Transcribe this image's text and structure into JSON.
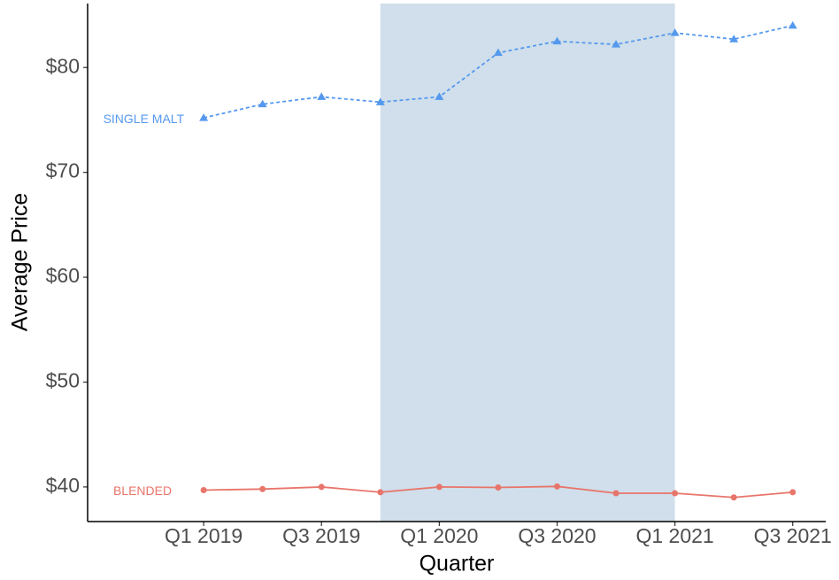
{
  "chart_data": {
    "type": "line",
    "x_label": "Quarter",
    "y_label": "Average Price",
    "categories": [
      "Q1 2019",
      null,
      "Q3 2019",
      null,
      "Q1 2020",
      null,
      "Q3 2020",
      null,
      "Q1 2021",
      null,
      "Q3 2021"
    ],
    "series": [
      {
        "name": "SINGLE MALT",
        "color": "#5599ee",
        "line_style": "dashed",
        "marker": "triangle",
        "values": [
          75.2,
          76.5,
          77.2,
          76.7,
          77.2,
          81.4,
          82.5,
          82.2,
          83.3,
          82.7,
          84.0
        ]
      },
      {
        "name": "BLENDED",
        "color": "#e8756b",
        "line_style": "solid",
        "marker": "circle",
        "values": [
          39.7,
          39.8,
          40.0,
          39.5,
          40.0,
          39.95,
          40.05,
          39.4,
          39.4,
          39.0,
          39.5
        ]
      }
    ],
    "ylim": [
      36.7,
      86.1
    ],
    "yticks": [
      {
        "value": 40,
        "label": "$40"
      },
      {
        "value": 50,
        "label": "$50"
      },
      {
        "value": 60,
        "label": "$60"
      },
      {
        "value": 70,
        "label": "$70"
      },
      {
        "value": 80,
        "label": "$80"
      }
    ],
    "highlight_span": [
      3,
      8
    ],
    "highlight_color": "#d0dfeb",
    "grid": false
  }
}
